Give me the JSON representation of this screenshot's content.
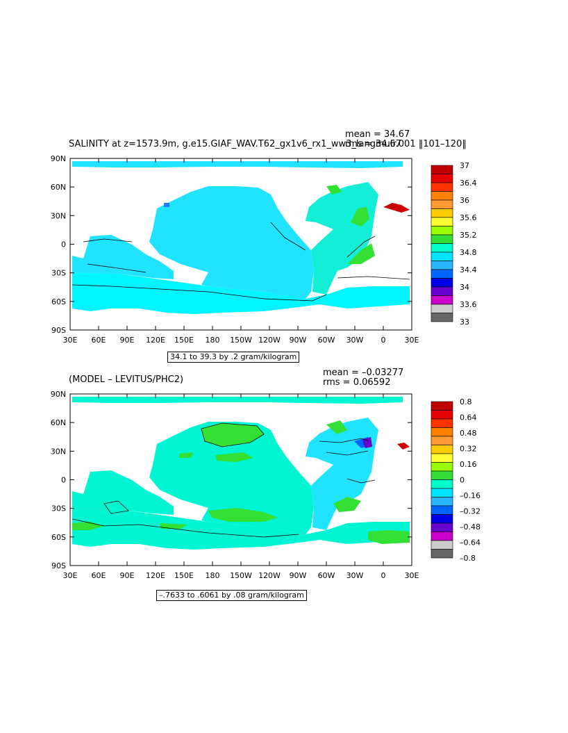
{
  "top": {
    "title": "SALINITY at z=1573.9m, g.e15.GIAF_WAV.T62_gx1v6_rx1_ww3_langmuir.001 ‖101–120‖",
    "mean_text": "mean = 34.67",
    "rms_text": "rms = 34.67",
    "range_text": "34.1 to 39.3 by .2 gram/kilogram",
    "lat_labels": [
      "90N",
      "60N",
      "30N",
      "0",
      "30S",
      "60S",
      "90S"
    ],
    "lon_labels": [
      "30E",
      "60E",
      "90E",
      "120E",
      "150E",
      "180",
      "150W",
      "120W",
      "90W",
      "60W",
      "30W",
      "0",
      "30E"
    ],
    "colorbar": {
      "labels": [
        "37",
        "36.4",
        "36",
        "35.6",
        "35.2",
        "34.8",
        "34.4",
        "34",
        "33.6",
        "33"
      ],
      "colors": [
        "#c00000",
        "#e60000",
        "#ff3300",
        "#ff8000",
        "#ff9933",
        "#ffcc00",
        "#ffff33",
        "#99ff00",
        "#33dd33",
        "#00ffcc",
        "#00e5ff",
        "#29b6ff",
        "#0066ff",
        "#0000e6",
        "#6600cc",
        "#cc00cc",
        "#cccccc",
        "#666666"
      ]
    },
    "map_colors": {
      "ocean": "#1fe3ff",
      "south": "#00f5ff",
      "atlantic": "#13efd6",
      "high": "#33e033",
      "red": "#cc0000",
      "blue": "#1e7cff"
    }
  },
  "bottom": {
    "title": "(MODEL – LEVITUS/PHC2)",
    "mean_text": "mean = –0.03277",
    "rms_text": "rms = 0.06592",
    "range_text": "–.7633 to .6061 by .08 gram/kilogram",
    "lat_labels": [
      "90N",
      "60N",
      "30N",
      "0",
      "30S",
      "60S",
      "90S"
    ],
    "lon_labels": [
      "30E",
      "60E",
      "90E",
      "120E",
      "150E",
      "180",
      "150W",
      "120W",
      "90W",
      "60W",
      "30W",
      "0",
      "30E"
    ],
    "colorbar": {
      "labels": [
        "0.8",
        "0.64",
        "0.48",
        "0.32",
        "0.16",
        "0",
        "–0.16",
        "–0.32",
        "–0.48",
        "–0.64",
        "–0.8"
      ],
      "colors": [
        "#c00000",
        "#e60000",
        "#ff3300",
        "#ff8000",
        "#ff9933",
        "#ffcc00",
        "#ffff33",
        "#99ff00",
        "#33dd33",
        "#00ffcc",
        "#00e5ff",
        "#29b6ff",
        "#0066ff",
        "#0000e6",
        "#6600cc",
        "#cc00cc",
        "#cccccc",
        "#666666"
      ]
    },
    "map_colors": {
      "ocean": "#00f5d2",
      "south": "#00e8ff",
      "pos": "#33e033",
      "neg": "#1fe3ff",
      "red": "#cc0000",
      "purple": "#6600cc"
    }
  }
}
